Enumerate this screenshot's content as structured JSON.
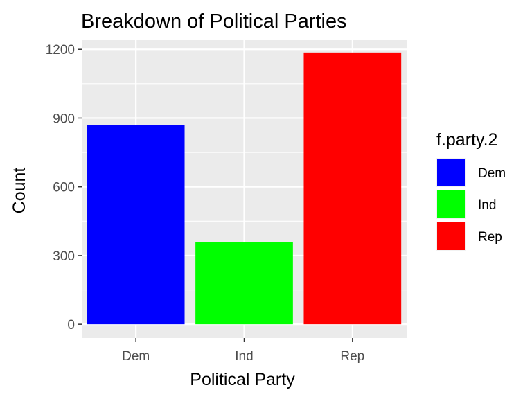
{
  "chart_data": {
    "type": "bar",
    "title": "Breakdown of Political Parties",
    "xlabel": "Political Party",
    "ylabel": "Count",
    "categories": [
      "Dem",
      "Ind",
      "Rep"
    ],
    "values": [
      870,
      358,
      1186
    ],
    "colors": [
      "#0000FF",
      "#00FF00",
      "#FF0000"
    ],
    "ylim": [
      -60,
      1240
    ],
    "yticks": [
      0,
      300,
      600,
      900,
      1200
    ],
    "grid": true,
    "panel_background": "#EBEBEB",
    "legend": {
      "title": "f.party.2",
      "placement": "right",
      "entries": [
        "Dem",
        "Ind",
        "Rep"
      ]
    }
  }
}
